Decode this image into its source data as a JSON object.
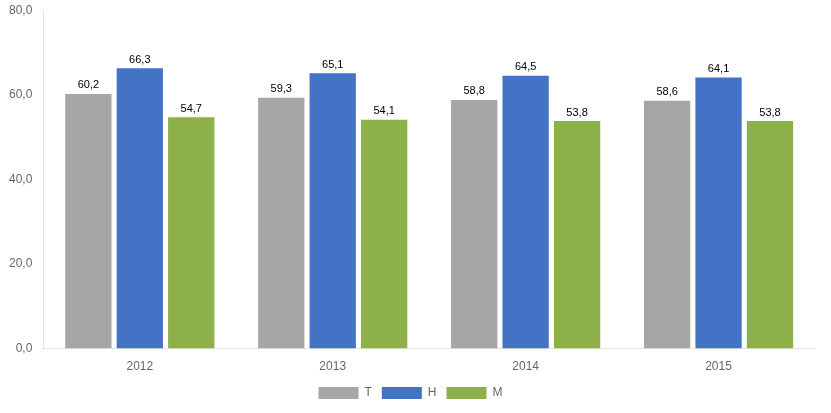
{
  "chart_data": {
    "type": "bar",
    "categories": [
      "2012",
      "2013",
      "2014",
      "2015"
    ],
    "series": [
      {
        "name": "T",
        "color": "#A6A6A6",
        "values": [
          60.2,
          59.3,
          58.8,
          58.6
        ],
        "value_labels": [
          "60,2",
          "59,3",
          "58,8",
          "58,6"
        ]
      },
      {
        "name": "H",
        "color": "#4472C4",
        "values": [
          66.3,
          65.1,
          64.5,
          64.1
        ],
        "value_labels": [
          "66,3",
          "65,1",
          "64,5",
          "64,1"
        ]
      },
      {
        "name": "M",
        "color": "#8DB04A",
        "values": [
          54.7,
          54.1,
          53.8,
          53.8
        ],
        "value_labels": [
          "54,7",
          "54,1",
          "53,8",
          "53,8"
        ]
      }
    ],
    "ylim": [
      0,
      80
    ],
    "yticks": [
      {
        "value": 0,
        "label": "0,0"
      },
      {
        "value": 20,
        "label": "20,0"
      },
      {
        "value": 40,
        "label": "40,0"
      },
      {
        "value": 60,
        "label": "60,0"
      },
      {
        "value": 80,
        "label": "80,0"
      }
    ],
    "grid": false,
    "legend": "bottom",
    "data_labels": true
  }
}
